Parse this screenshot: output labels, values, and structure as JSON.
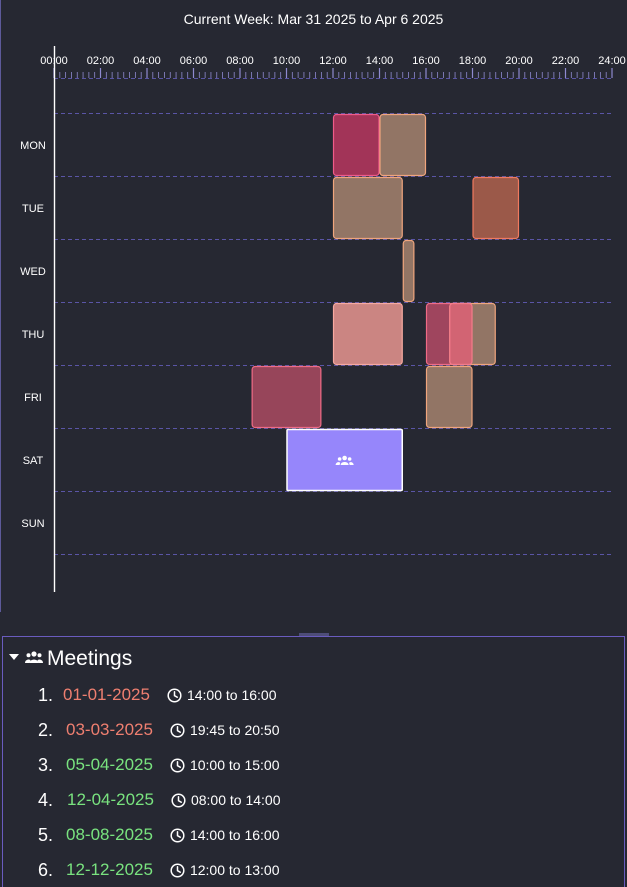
{
  "header": {
    "week_title": "Current Week: Mar 31 2025 to Apr 6 2025"
  },
  "colors": {
    "background": "#262832",
    "grid_dash": "#5a55a6",
    "axis": "#ffffff",
    "selected_event_fill": "#9686fb",
    "date_past": "#ef7f70",
    "date_future": "#79e37f"
  },
  "hour_labels": [
    "00:00",
    "02:00",
    "04:00",
    "06:00",
    "08:00",
    "10:00",
    "12:00",
    "14:00",
    "16:00",
    "18:00",
    "20:00",
    "22:00",
    "24:00"
  ],
  "days": [
    "MON",
    "TUE",
    "WED",
    "THU",
    "FRI",
    "SAT",
    "SUN"
  ],
  "events": [
    {
      "day": 0,
      "start": 12.0,
      "end": 14.0,
      "fill": "#b8365f",
      "stroke": "#ef5b8a"
    },
    {
      "day": 0,
      "start": 14.0,
      "end": 16.0,
      "fill": "#a6836f",
      "stroke": "#f0a57d"
    },
    {
      "day": 1,
      "start": 12.0,
      "end": 15.0,
      "fill": "#a6836f",
      "stroke": "#f0a57d"
    },
    {
      "day": 1,
      "start": 18.0,
      "end": 20.0,
      "fill": "#b0614e",
      "stroke": "#f07a5f"
    },
    {
      "day": 2,
      "start": 15.0,
      "end": 15.5,
      "fill": "#a6836f",
      "stroke": "#f0a57d"
    },
    {
      "day": 3,
      "start": 12.0,
      "end": 15.0,
      "fill": "#e99590",
      "stroke": "#f7a9a0"
    },
    {
      "day": 3,
      "start": 16.0,
      "end": 18.0,
      "fill": "#b54a66",
      "stroke": "#ef6b86"
    },
    {
      "day": 3,
      "start": 17.0,
      "end": 19.0,
      "fill": "#a6836f",
      "stroke": "#f0a57d"
    },
    {
      "day": 3,
      "start": 17.0,
      "end": 18.0,
      "fill": "#d96074",
      "stroke": "#f47b8a"
    },
    {
      "day": 4,
      "start": 8.5,
      "end": 11.5,
      "fill": "#ac4a62",
      "stroke": "#ef6b86"
    },
    {
      "day": 4,
      "start": 16.0,
      "end": 18.0,
      "fill": "#a6836f",
      "stroke": "#f0a57d"
    },
    {
      "day": 5,
      "start": 10.0,
      "end": 15.0,
      "fill": "#9686fb",
      "stroke": "#ffffff",
      "icon": "group-icon"
    }
  ],
  "meetings_panel": {
    "title": "Meetings",
    "items": [
      {
        "index": "1.",
        "date": "01-01-2025",
        "time": "14:00 to 16:00",
        "status": "past"
      },
      {
        "index": "2.",
        "date": "03-03-2025",
        "time": "19:45 to 20:50",
        "status": "past"
      },
      {
        "index": "3.",
        "date": "05-04-2025",
        "time": "10:00 to 15:00",
        "status": "future"
      },
      {
        "index": "4.",
        "date": "12-04-2025",
        "time": "08:00 to 14:00",
        "status": "future"
      },
      {
        "index": "5.",
        "date": "08-08-2025",
        "time": "14:00 to 16:00",
        "status": "future"
      },
      {
        "index": "6.",
        "date": "12-12-2025",
        "time": "12:00 to 13:00",
        "status": "future"
      }
    ]
  }
}
